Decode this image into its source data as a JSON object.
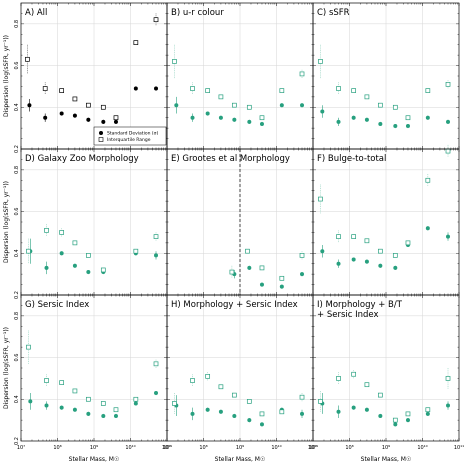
{
  "colors": {
    "all_filled": "#000000",
    "all_open": "#000000",
    "teal": "#27a07f",
    "teal_light": "#8fd0bd",
    "grid": "#d6d6d6",
    "frame": "#000000"
  },
  "figure": {
    "ylabel": "Dispersion (log(sSFR, yr⁻¹))",
    "xlabel": "Stellar Mass, M☉"
  },
  "chart_data": [
    {
      "type": "scatter",
      "panel": "A",
      "title": "A) All",
      "xlabel": "Stellar Mass, M☉",
      "ylabel": "Dispersion (log(sSFR, yr⁻¹))",
      "xscale": "log",
      "xlim": [
        10000000,
        100000000000
      ],
      "ylim": [
        0.2,
        0.9
      ],
      "xticks": [
        "10⁷",
        "10⁸",
        "10⁹",
        "10¹⁰",
        "10¹¹"
      ],
      "yticks": [
        "0.2",
        "0.4",
        "0.6",
        "0.8"
      ],
      "grid": true,
      "legend": {
        "placement": "bottom-right",
        "entries": [
          "Standard Deviation (σ)",
          "Interquartile Range"
        ]
      },
      "series": [
        {
          "name": "Standard Deviation (σ)",
          "marker": "filled-circle",
          "color": "black",
          "x": [
            17000000,
            46000000,
            130000000,
            300000000,
            700000000,
            1800000000,
            4000000000,
            14000000000,
            50000000000
          ],
          "y": [
            0.41,
            0.35,
            0.37,
            0.36,
            0.34,
            0.33,
            0.33,
            0.49,
            0.49
          ],
          "err": [
            0.03,
            0.02,
            0.01,
            0.01,
            0.01,
            0.01,
            0.01,
            0.01,
            0.01
          ]
        },
        {
          "name": "Interquartile Range",
          "marker": "open-square",
          "color": "black",
          "x": [
            15000000,
            46000000,
            130000000,
            300000000,
            700000000,
            1800000000,
            4000000000,
            14000000000,
            50000000000
          ],
          "y": [
            0.63,
            0.49,
            0.48,
            0.44,
            0.41,
            0.4,
            0.35,
            0.71,
            0.82
          ],
          "err": [
            0.07,
            0.03,
            0.01,
            0.01,
            0.01,
            0.01,
            0.01,
            0.01,
            0.03
          ]
        }
      ]
    },
    {
      "type": "scatter",
      "panel": "B",
      "title": "B) u-r colour",
      "xscale": "log",
      "xlim": [
        10000000,
        100000000000
      ],
      "ylim": [
        0.2,
        0.9
      ],
      "grid": true,
      "series": [
        {
          "marker": "filled-circle",
          "color": "teal",
          "x": [
            18000000,
            50000000,
            130000000,
            300000000,
            700000000,
            1800000000,
            4000000000,
            14000000000,
            50000000000
          ],
          "y": [
            0.41,
            0.35,
            0.37,
            0.35,
            0.34,
            0.33,
            0.32,
            0.41,
            0.41
          ],
          "err": [
            0.04,
            0.02,
            0.01,
            0.01,
            0.01,
            0.01,
            0.01,
            0.01,
            0.01
          ]
        },
        {
          "marker": "open-square",
          "color": "teal",
          "x": [
            16000000,
            50000000,
            130000000,
            300000000,
            700000000,
            1800000000,
            4000000000,
            14000000000,
            50000000000
          ],
          "y": [
            0.62,
            0.49,
            0.48,
            0.45,
            0.41,
            0.4,
            0.35,
            0.48,
            0.56
          ],
          "err": [
            0.08,
            0.03,
            0.01,
            0.01,
            0.01,
            0.01,
            0.01,
            0.01,
            0.02
          ]
        }
      ]
    },
    {
      "type": "scatter",
      "panel": "C",
      "title": "C) sSFR",
      "xscale": "log",
      "xlim": [
        10000000,
        100000000000
      ],
      "ylim": [
        0.2,
        0.9
      ],
      "grid": true,
      "series": [
        {
          "marker": "filled-circle",
          "color": "teal",
          "x": [
            18000000,
            50000000,
            130000000,
            300000000,
            700000000,
            1800000000,
            4000000000,
            14000000000,
            50000000000
          ],
          "y": [
            0.38,
            0.33,
            0.35,
            0.34,
            0.32,
            0.31,
            0.31,
            0.35,
            0.33
          ],
          "err": [
            0.03,
            0.02,
            0.01,
            0.01,
            0.01,
            0.01,
            0.01,
            0.01,
            0.01
          ]
        },
        {
          "marker": "open-square",
          "color": "teal",
          "x": [
            16000000,
            50000000,
            130000000,
            300000000,
            700000000,
            1800000000,
            4000000000,
            14000000000,
            50000000000
          ],
          "y": [
            0.62,
            0.49,
            0.48,
            0.45,
            0.41,
            0.4,
            0.35,
            0.48,
            0.51
          ],
          "err": [
            0.08,
            0.03,
            0.01,
            0.01,
            0.01,
            0.01,
            0.01,
            0.01,
            0.02
          ]
        }
      ]
    },
    {
      "type": "scatter",
      "panel": "D",
      "title": "D) Galaxy Zoo Morphology",
      "xscale": "log",
      "xlim": [
        10000000,
        100000000000
      ],
      "ylim": [
        0.2,
        0.9
      ],
      "grid": true,
      "series": [
        {
          "marker": "filled-circle",
          "color": "teal",
          "x": [
            18000000,
            50000000,
            130000000,
            300000000,
            700000000,
            1800000000,
            14000000000,
            50000000000
          ],
          "y": [
            0.41,
            0.33,
            0.4,
            0.34,
            0.31,
            0.31,
            0.4,
            0.39
          ],
          "err": [
            0.06,
            0.03,
            0.01,
            0.01,
            0.01,
            0.01,
            0.01,
            0.02
          ]
        },
        {
          "marker": "open-square",
          "color": "teal",
          "x": [
            16000000,
            50000000,
            130000000,
            300000000,
            700000000,
            1800000000,
            14000000000,
            50000000000
          ],
          "y": [
            0.41,
            0.51,
            0.5,
            0.45,
            0.39,
            0.32,
            0.41,
            0.48
          ],
          "err": [
            0.06,
            0.03,
            0.02,
            0.01,
            0.01,
            0.01,
            0.01,
            0.02
          ]
        }
      ]
    },
    {
      "type": "scatter",
      "panel": "E",
      "title": "E) Grootes et al Morphology",
      "xscale": "log",
      "xlim": [
        10000000,
        100000000000
      ],
      "ylim": [
        0.2,
        0.9
      ],
      "grid": true,
      "vline_x": 1000000000,
      "series": [
        {
          "marker": "filled-circle",
          "color": "teal",
          "x": [
            700000000,
            1800000000,
            4000000000,
            14000000000,
            50000000000
          ],
          "y": [
            0.3,
            0.33,
            0.25,
            0.24,
            0.3
          ],
          "err": [
            0.02,
            0.01,
            0.01,
            0.01,
            0.01
          ]
        },
        {
          "marker": "open-square",
          "color": "teal",
          "x": [
            600000000,
            1600000000,
            4000000000,
            14000000000,
            50000000000
          ],
          "y": [
            0.31,
            0.41,
            0.33,
            0.28,
            0.39
          ],
          "err": [
            0.03,
            0.01,
            0.01,
            0.01,
            0.02
          ]
        }
      ]
    },
    {
      "type": "scatter",
      "panel": "F",
      "title": "F) Bulge-to-total",
      "xscale": "log",
      "xlim": [
        10000000,
        100000000000
      ],
      "ylim": [
        0.2,
        0.9
      ],
      "grid": true,
      "series": [
        {
          "marker": "filled-circle",
          "color": "teal",
          "x": [
            18000000,
            50000000,
            130000000,
            300000000,
            700000000,
            1800000000,
            4000000000,
            14000000000,
            50000000000
          ],
          "y": [
            0.41,
            0.35,
            0.37,
            0.36,
            0.34,
            0.33,
            0.44,
            0.52,
            0.48
          ],
          "err": [
            0.03,
            0.02,
            0.01,
            0.01,
            0.01,
            0.01,
            0.01,
            0.01,
            0.02
          ]
        },
        {
          "marker": "open-square",
          "color": "teal",
          "x": [
            16000000,
            50000000,
            130000000,
            300000000,
            700000000,
            1800000000,
            4000000000,
            14000000000,
            50000000000
          ],
          "y": [
            0.66,
            0.48,
            0.48,
            0.46,
            0.41,
            0.39,
            0.45,
            0.75,
            0.89
          ],
          "err": [
            0.07,
            0.03,
            0.01,
            0.01,
            0.01,
            0.01,
            0.01,
            0.03,
            0.03
          ]
        }
      ]
    },
    {
      "type": "scatter",
      "panel": "G",
      "title": "G) Sersic Index",
      "xscale": "log",
      "xlim": [
        10000000,
        100000000000
      ],
      "ylim": [
        0.2,
        0.9
      ],
      "grid": true,
      "series": [
        {
          "marker": "filled-circle",
          "color": "teal",
          "x": [
            18000000,
            50000000,
            130000000,
            300000000,
            700000000,
            1800000000,
            4000000000,
            14000000000,
            50000000000
          ],
          "y": [
            0.39,
            0.37,
            0.36,
            0.35,
            0.33,
            0.32,
            0.32,
            0.38,
            0.43
          ],
          "err": [
            0.04,
            0.02,
            0.01,
            0.01,
            0.01,
            0.01,
            0.01,
            0.01,
            0.01
          ]
        },
        {
          "marker": "open-square",
          "color": "teal",
          "x": [
            16000000,
            50000000,
            130000000,
            300000000,
            700000000,
            1800000000,
            4000000000,
            14000000000,
            50000000000
          ],
          "y": [
            0.65,
            0.49,
            0.48,
            0.44,
            0.4,
            0.38,
            0.35,
            0.4,
            0.57
          ],
          "err": [
            0.08,
            0.03,
            0.01,
            0.01,
            0.01,
            0.01,
            0.01,
            0.01,
            0.02
          ]
        }
      ]
    },
    {
      "type": "scatter",
      "panel": "H",
      "title": "H) Morphology + Sersic Index",
      "xscale": "log",
      "xlim": [
        10000000,
        100000000000
      ],
      "ylim": [
        0.2,
        0.9
      ],
      "grid": true,
      "series": [
        {
          "marker": "filled-circle",
          "color": "teal",
          "x": [
            18000000,
            50000000,
            130000000,
            300000000,
            700000000,
            1800000000,
            4000000000,
            14000000000,
            50000000000
          ],
          "y": [
            0.37,
            0.33,
            0.35,
            0.34,
            0.32,
            0.3,
            0.28,
            0.35,
            0.33
          ],
          "err": [
            0.05,
            0.03,
            0.01,
            0.01,
            0.01,
            0.01,
            0.01,
            0.01,
            0.02
          ]
        },
        {
          "marker": "open-square",
          "color": "teal",
          "x": [
            16000000,
            50000000,
            130000000,
            300000000,
            700000000,
            1800000000,
            4000000000,
            14000000000,
            50000000000
          ],
          "y": [
            0.38,
            0.49,
            0.51,
            0.46,
            0.42,
            0.39,
            0.33,
            0.34,
            0.41
          ],
          "err": [
            0.05,
            0.03,
            0.02,
            0.01,
            0.01,
            0.01,
            0.01,
            0.01,
            0.02
          ]
        }
      ]
    },
    {
      "type": "scatter",
      "panel": "I",
      "title": "I) Morphology + B/T",
      "subtitle": "+ Sersic Index",
      "xscale": "log",
      "xlim": [
        10000000,
        100000000000
      ],
      "ylim": [
        0.2,
        0.9
      ],
      "grid": true,
      "series": [
        {
          "marker": "filled-circle",
          "color": "teal",
          "x": [
            18000000,
            50000000,
            130000000,
            300000000,
            700000000,
            1800000000,
            4000000000,
            14000000000,
            50000000000
          ],
          "y": [
            0.38,
            0.34,
            0.36,
            0.35,
            0.32,
            0.28,
            0.3,
            0.33,
            0.37
          ],
          "err": [
            0.05,
            0.03,
            0.01,
            0.01,
            0.01,
            0.01,
            0.01,
            0.01,
            0.02
          ]
        },
        {
          "marker": "open-square",
          "color": "teal",
          "x": [
            16000000,
            50000000,
            130000000,
            300000000,
            700000000,
            1800000000,
            4000000000,
            14000000000,
            50000000000
          ],
          "y": [
            0.39,
            0.5,
            0.52,
            0.47,
            0.42,
            0.3,
            0.33,
            0.35,
            0.5
          ],
          "err": [
            0.05,
            0.03,
            0.02,
            0.01,
            0.01,
            0.01,
            0.01,
            0.01,
            0.05
          ]
        }
      ]
    }
  ]
}
